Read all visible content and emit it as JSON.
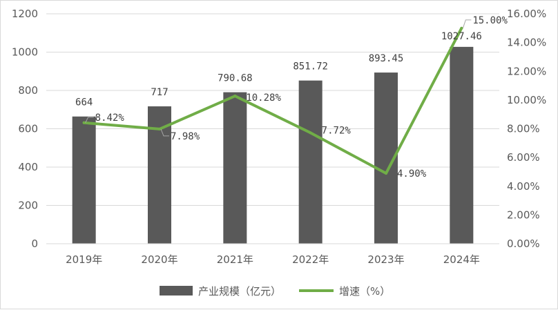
{
  "chart_data": {
    "type": "bar",
    "categories": [
      "2019年",
      "2020年",
      "2021年",
      "2022年",
      "2023年",
      "2024年"
    ],
    "series": [
      {
        "name": "产业规模（亿元）",
        "type": "bar",
        "axis": "left",
        "values": [
          664,
          717,
          790.68,
          851.72,
          893.45,
          1027.46
        ],
        "labels": [
          "664",
          "717",
          "790.68",
          "851.72",
          "893.45",
          "1027.46"
        ],
        "color": "#595959"
      },
      {
        "name": "增速（%）",
        "type": "line",
        "axis": "right",
        "values": [
          8.42,
          7.98,
          10.28,
          7.72,
          4.9,
          15.0
        ],
        "labels": [
          "8.42%",
          "7.98%",
          "10.28%",
          "7.72%",
          "4.90%",
          "15.00%"
        ],
        "color": "#70ad47"
      }
    ],
    "y_left": {
      "ylim": [
        0,
        1200
      ],
      "ticks": [
        0,
        200,
        400,
        600,
        800,
        1000,
        1200
      ],
      "tick_labels": [
        "0",
        "200",
        "400",
        "600",
        "800",
        "1000",
        "1200"
      ]
    },
    "y_right": {
      "ylim": [
        0,
        16
      ],
      "ticks": [
        0,
        2,
        4,
        6,
        8,
        10,
        12,
        14,
        16
      ],
      "tick_labels": [
        "0.00%",
        "2.00%",
        "4.00%",
        "6.00%",
        "8.00%",
        "10.00%",
        "12.00%",
        "14.00%",
        "16.00%"
      ]
    },
    "grid": true,
    "legend_position": "bottom",
    "colors": {
      "gridline": "#d9d9d9",
      "leader": "#a6a6a6"
    }
  }
}
